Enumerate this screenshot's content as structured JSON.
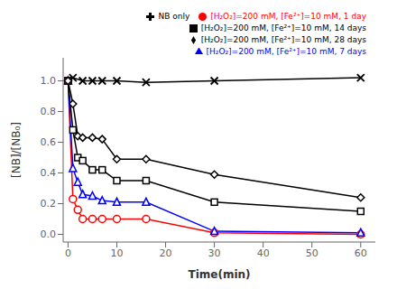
{
  "chart_data": {
    "type": "line",
    "xlabel": "Time(min)",
    "ylabel": "[NB]/[NB₀]",
    "xlim": [
      -1,
      63
    ],
    "ylim": [
      -0.05,
      1.15
    ],
    "xticks": [
      0,
      10,
      20,
      30,
      40,
      50,
      60
    ],
    "yticks": [
      {
        "value": 0,
        "label": "0.0"
      },
      0.2,
      0.4,
      0.6,
      0.8,
      {
        "value": 1,
        "label": "1.0"
      }
    ],
    "grid": false,
    "legend": "upper right",
    "series": [
      {
        "name": "NB only",
        "color": "black",
        "marker": "x",
        "x": [
          0,
          1,
          3,
          5,
          7,
          10,
          16,
          30,
          60
        ],
        "values": [
          1.0,
          1.02,
          1.0,
          1.0,
          1.0,
          1.0,
          0.99,
          1.0,
          1.02
        ]
      },
      {
        "name": "[H₂O₂]=200 mM, [Fe²⁺]=10 mM, 1 day",
        "color": "red",
        "marker": "circle",
        "x": [
          0,
          1,
          2,
          3,
          5,
          7,
          10,
          16,
          30,
          60
        ],
        "values": [
          1.0,
          0.23,
          0.16,
          0.1,
          0.1,
          0.1,
          0.1,
          0.1,
          0.01,
          0.0
        ]
      },
      {
        "name": "[H₂O₂]=200 mM, [Fe²⁺]=10 mM, 7 days",
        "color": "blue",
        "marker": "triangle",
        "x": [
          0,
          1,
          2,
          3,
          5,
          7,
          10,
          16,
          30,
          60
        ],
        "values": [
          1.0,
          0.43,
          0.34,
          0.26,
          0.25,
          0.22,
          0.21,
          0.21,
          0.02,
          0.01
        ]
      },
      {
        "name": "[H₂O₂]=200 mM, [Fe²⁺]=10 mM, 14 days",
        "color": "black",
        "marker": "square",
        "x": [
          0,
          1,
          2,
          3,
          5,
          7,
          10,
          16,
          30,
          60
        ],
        "values": [
          1.0,
          0.68,
          0.5,
          0.48,
          0.42,
          0.42,
          0.35,
          0.35,
          0.21,
          0.15
        ]
      },
      {
        "name": "[H₂O₂]=200 mM, [Fe²⁺]=10 mM, 28 days",
        "color": "black",
        "marker": "diamond",
        "x": [
          0,
          1,
          2,
          3,
          5,
          7,
          10,
          16,
          30,
          60
        ],
        "values": [
          1.0,
          0.85,
          0.64,
          0.63,
          0.63,
          0.62,
          0.49,
          0.49,
          0.39,
          0.24
        ]
      }
    ]
  }
}
